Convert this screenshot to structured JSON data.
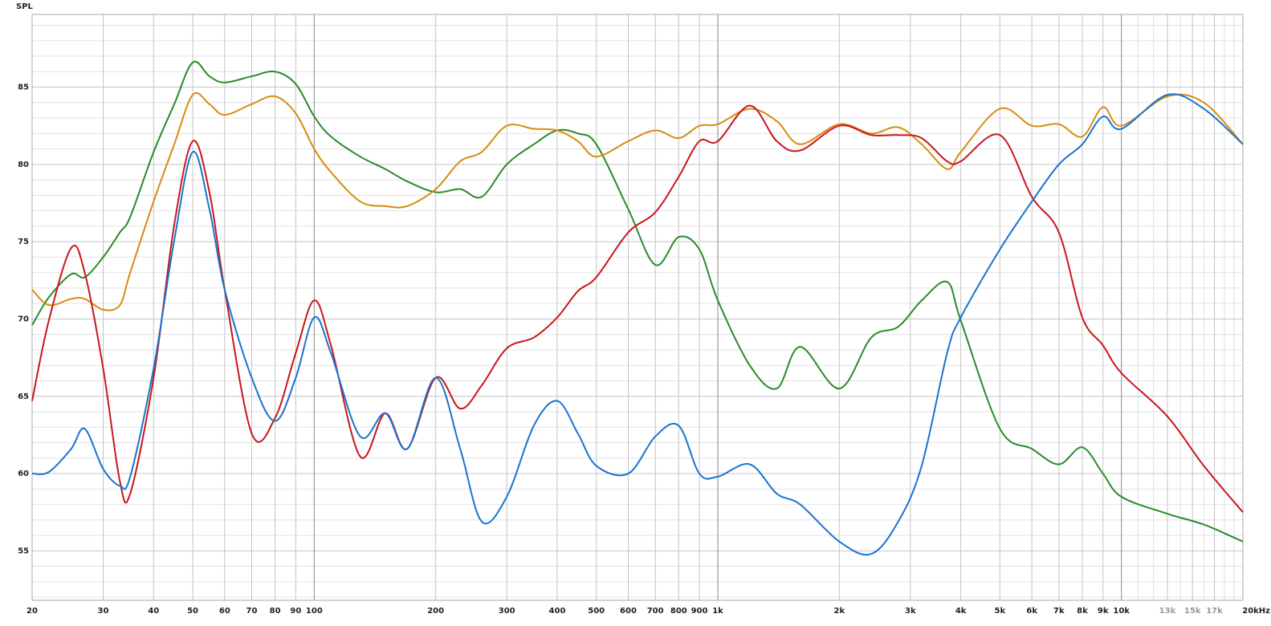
{
  "chart_data": {
    "type": "line",
    "y_axis_label": "SPL",
    "x_scale": "log",
    "grid": true,
    "xlim": [
      20,
      20000
    ],
    "ylim": [
      51.8,
      89.7
    ],
    "xticks": [
      20,
      30,
      40,
      50,
      60,
      70,
      80,
      90,
      100,
      200,
      300,
      400,
      500,
      600,
      700,
      800,
      900,
      {
        "value": 1000,
        "label": "1k"
      },
      {
        "value": 2000,
        "label": "2k"
      },
      {
        "value": 3000,
        "label": "3k"
      },
      {
        "value": 4000,
        "label": "4k"
      },
      {
        "value": 5000,
        "label": "5k"
      },
      {
        "value": 6000,
        "label": "6k"
      },
      {
        "value": 7000,
        "label": "7k"
      },
      {
        "value": 8000,
        "label": "8k"
      },
      {
        "value": 9000,
        "label": "9k"
      },
      {
        "value": 10000,
        "label": "10k"
      },
      {
        "value": 13000,
        "label": "13k"
      },
      {
        "value": 15000,
        "label": "15k"
      },
      {
        "value": 17000,
        "label": "17k"
      },
      {
        "value": 20000,
        "label": "20kHz"
      }
    ],
    "xticks_minor": [
      11000,
      12000,
      14000,
      16000,
      18000,
      19000
    ],
    "yticks": [
      55,
      60,
      65,
      70,
      75,
      80,
      85
    ],
    "yticks_minor": [
      52,
      53,
      54,
      56,
      57,
      58,
      59,
      61,
      62,
      63,
      64,
      66,
      67,
      68,
      69,
      71,
      72,
      73,
      74,
      76,
      77,
      78,
      79,
      81,
      82,
      83,
      84,
      86,
      87,
      88,
      89
    ],
    "x": [
      20,
      22,
      25,
      27,
      30,
      33,
      35,
      40,
      45,
      50,
      55,
      60,
      70,
      80,
      90,
      100,
      110,
      130,
      150,
      170,
      200,
      230,
      260,
      300,
      350,
      400,
      450,
      500,
      600,
      700,
      800,
      900,
      1000,
      1200,
      1400,
      1600,
      2000,
      2400,
      2800,
      3200,
      3700,
      4000,
      5000,
      6000,
      7000,
      8000,
      9000,
      10000,
      13000,
      16000,
      20000
    ],
    "series": [
      {
        "color": "#2a8a2a",
        "values": [
          69.6,
          71.4,
          72.9,
          72.7,
          74.0,
          75.6,
          76.6,
          80.8,
          83.9,
          86.6,
          85.7,
          85.3,
          85.7,
          86.0,
          85.2,
          83.1,
          81.8,
          80.5,
          79.7,
          78.9,
          78.2,
          78.4,
          77.9,
          80.0,
          81.3,
          82.2,
          82.0,
          81.3,
          77.1,
          73.5,
          75.3,
          74.5,
          71.2,
          67.0,
          65.5,
          68.2,
          65.5,
          68.8,
          69.5,
          71.2,
          72.4,
          69.9,
          62.9,
          61.6,
          60.6,
          61.7,
          60.0,
          58.5,
          57.4,
          56.7,
          55.6
        ]
      },
      {
        "color": "#d98b0f",
        "values": [
          71.9,
          70.9,
          71.3,
          71.3,
          70.6,
          70.9,
          73.0,
          77.6,
          81.3,
          84.5,
          83.9,
          83.2,
          83.9,
          84.4,
          83.3,
          81.0,
          79.5,
          77.6,
          77.3,
          77.3,
          78.4,
          80.2,
          80.8,
          82.5,
          82.3,
          82.2,
          81.5,
          80.5,
          81.5,
          82.2,
          81.7,
          82.5,
          82.6,
          83.6,
          82.8,
          81.3,
          82.6,
          82.0,
          82.4,
          81.3,
          79.7,
          80.8,
          83.6,
          82.5,
          82.6,
          81.8,
          83.7,
          82.5,
          84.4,
          84.0,
          81.3
        ]
      },
      {
        "color": "#c8161d",
        "values": [
          64.7,
          69.9,
          74.6,
          73.0,
          66.8,
          59.5,
          58.7,
          66.2,
          76.1,
          81.5,
          78.2,
          71.9,
          62.6,
          63.6,
          67.8,
          71.2,
          68.3,
          61.1,
          63.9,
          61.6,
          66.2,
          64.2,
          65.7,
          68.1,
          68.8,
          70.1,
          71.8,
          72.7,
          75.6,
          76.9,
          79.2,
          81.5,
          81.5,
          83.8,
          81.5,
          80.9,
          82.5,
          81.9,
          81.9,
          81.7,
          80.2,
          80.2,
          81.9,
          77.9,
          75.6,
          70.1,
          68.3,
          66.5,
          63.7,
          60.5,
          57.5
        ]
      },
      {
        "color": "#1874d0",
        "values": [
          60.0,
          60.1,
          61.6,
          62.9,
          60.3,
          59.2,
          59.8,
          66.8,
          75.1,
          80.8,
          77.1,
          71.9,
          66.2,
          63.4,
          66.2,
          70.1,
          67.8,
          62.4,
          63.9,
          61.6,
          66.2,
          61.6,
          56.9,
          58.5,
          63.1,
          64.7,
          62.6,
          60.5,
          60.0,
          62.4,
          63.1,
          60.0,
          59.8,
          60.6,
          58.7,
          58.0,
          55.6,
          54.8,
          56.9,
          60.5,
          67.8,
          70.1,
          74.5,
          77.6,
          80.0,
          81.3,
          83.1,
          82.3,
          84.5,
          83.6,
          81.3
        ]
      }
    ]
  }
}
